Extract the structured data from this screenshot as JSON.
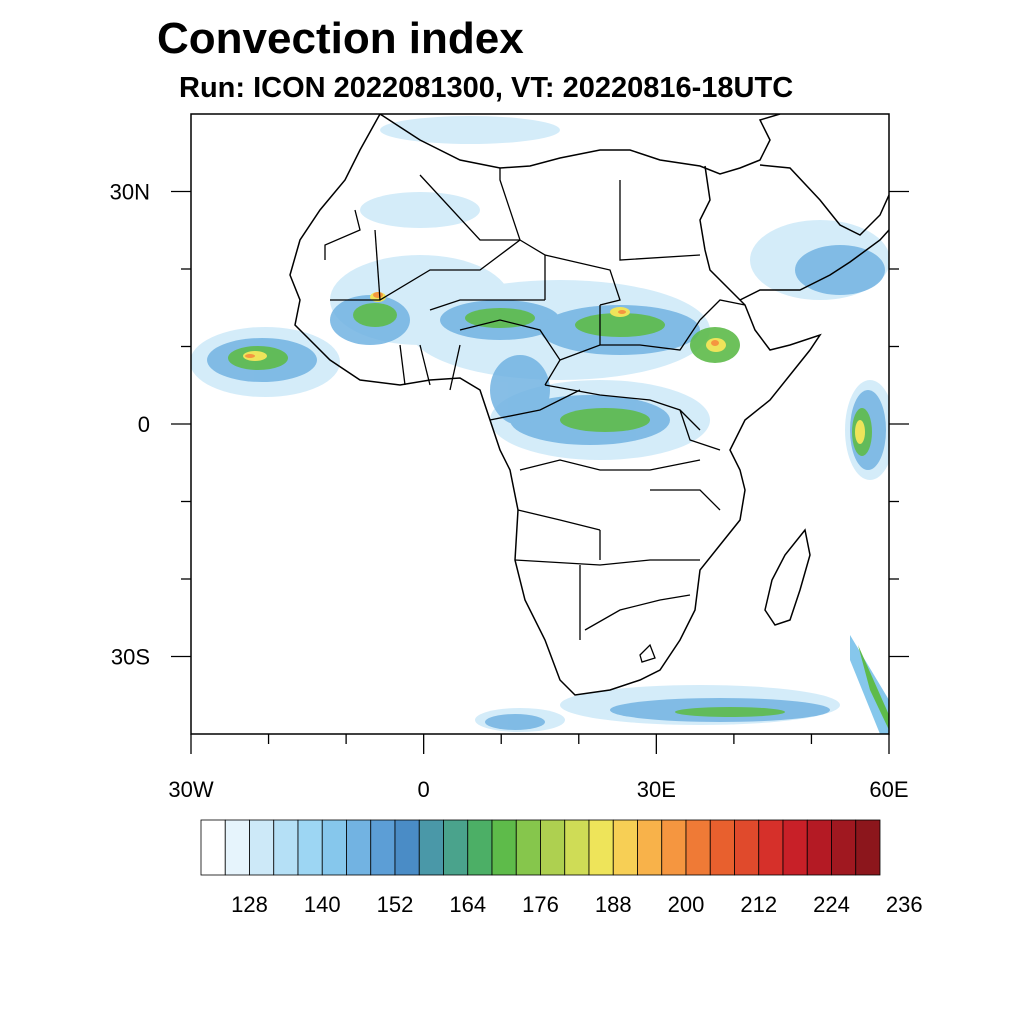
{
  "title": "Convection index",
  "subtitle": "Run: ICON 2022081300,  VT: 20220816-18UTC",
  "map": {
    "region": "Africa",
    "lon_range": [
      -30,
      60
    ],
    "lat_range": [
      -40,
      40
    ],
    "lon_ticks": [
      {
        "value": -30,
        "label": "30W"
      },
      {
        "value": 0,
        "label": "0"
      },
      {
        "value": 30,
        "label": "30E"
      },
      {
        "value": 60,
        "label": "60E"
      }
    ],
    "lat_ticks": [
      {
        "value": 30,
        "label": "30N"
      },
      {
        "value": 0,
        "label": "0"
      },
      {
        "value": -30,
        "label": "30S"
      }
    ]
  },
  "colorbar": {
    "colors": [
      "#ffffff",
      "#e6f4fc",
      "#cde9f8",
      "#b5e0f6",
      "#9dd6f3",
      "#86c7ec",
      "#72b3e2",
      "#5c9ed6",
      "#4a8cc6",
      "#4a98a8",
      "#4aa38c",
      "#4caf66",
      "#5ebb4a",
      "#86c64c",
      "#aed050",
      "#cfdc56",
      "#eee45a",
      "#f7cf55",
      "#f8b24a",
      "#f59640",
      "#ef7a36",
      "#e8602e",
      "#e04a2c",
      "#d6302a",
      "#c82028",
      "#b41a24",
      "#a01820",
      "#8c161c"
    ],
    "labels": [
      "128",
      "140",
      "152",
      "164",
      "176",
      "188",
      "200",
      "212",
      "224",
      "236"
    ]
  }
}
